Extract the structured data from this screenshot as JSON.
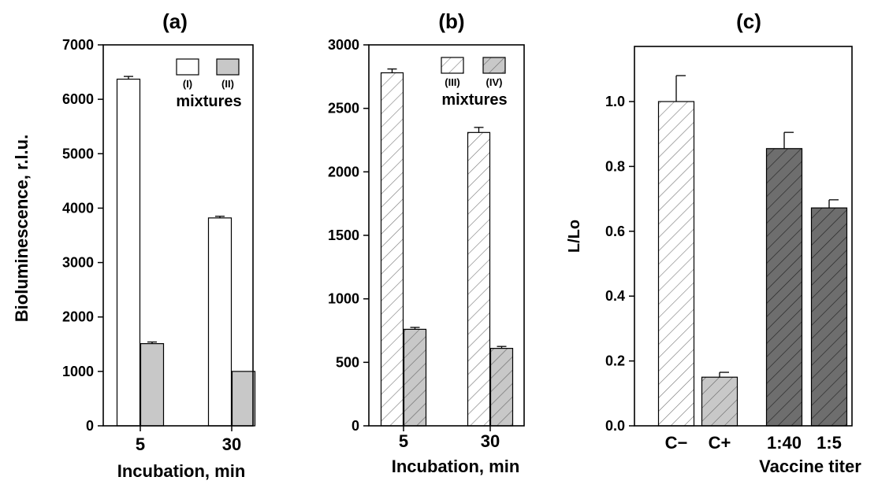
{
  "chart_data": [
    {
      "panel": "(a)",
      "type": "bar",
      "title": "(a)",
      "xlabel": "Incubation, min",
      "ylabel": "Bioluminescence, r.l.u.",
      "categories": [
        "5",
        "30"
      ],
      "ylim": [
        0,
        7000
      ],
      "yticks": [
        "0",
        "1000",
        "2000",
        "3000",
        "4000",
        "5000",
        "6000",
        "7000"
      ],
      "series": [
        {
          "name": "(I)",
          "values": [
            6370,
            3820
          ],
          "errors": [
            50,
            30
          ],
          "pattern": "open",
          "color": "#ffffff"
        },
        {
          "name": "(II)",
          "values": [
            1510,
            1000
          ],
          "errors": [
            30,
            0
          ],
          "pattern": "solid",
          "color": "#c8c8c8"
        }
      ],
      "legend_title": "mixtures",
      "legend_position": "top-right"
    },
    {
      "panel": "(b)",
      "type": "bar",
      "title": "(b)",
      "xlabel": "Incubation, min",
      "ylabel": "",
      "categories": [
        "5",
        "30"
      ],
      "ylim": [
        0,
        3000
      ],
      "yticks": [
        "0",
        "500",
        "1000",
        "1500",
        "2000",
        "2500",
        "3000"
      ],
      "series": [
        {
          "name": "(III)",
          "values": [
            2780,
            2310
          ],
          "errors": [
            30,
            40
          ],
          "pattern": "hatch",
          "color": "#ffffff"
        },
        {
          "name": "(IV)",
          "values": [
            760,
            610
          ],
          "errors": [
            15,
            15
          ],
          "pattern": "hatch",
          "color": "#c8c8c8"
        }
      ],
      "legend_title": "mixtures",
      "legend_position": "top-right"
    },
    {
      "panel": "(c)",
      "type": "bar",
      "title": "(c)",
      "xlabel": "Vaccine titer",
      "ylabel": "L/Lo",
      "categories": [
        "C−",
        "C+",
        "1:40",
        "1:5"
      ],
      "ylim": [
        0,
        1.17
      ],
      "yticks": [
        "0.0",
        "0.2",
        "0.4",
        "0.6",
        "0.8",
        "1.0"
      ],
      "values": [
        1.0,
        0.15,
        0.855,
        0.672
      ],
      "errors": [
        0.08,
        0.015,
        0.05,
        0.025
      ],
      "colors": [
        "#ffffff",
        "#c8c8c8",
        "#6e6e6e",
        "#6e6e6e"
      ]
    }
  ]
}
